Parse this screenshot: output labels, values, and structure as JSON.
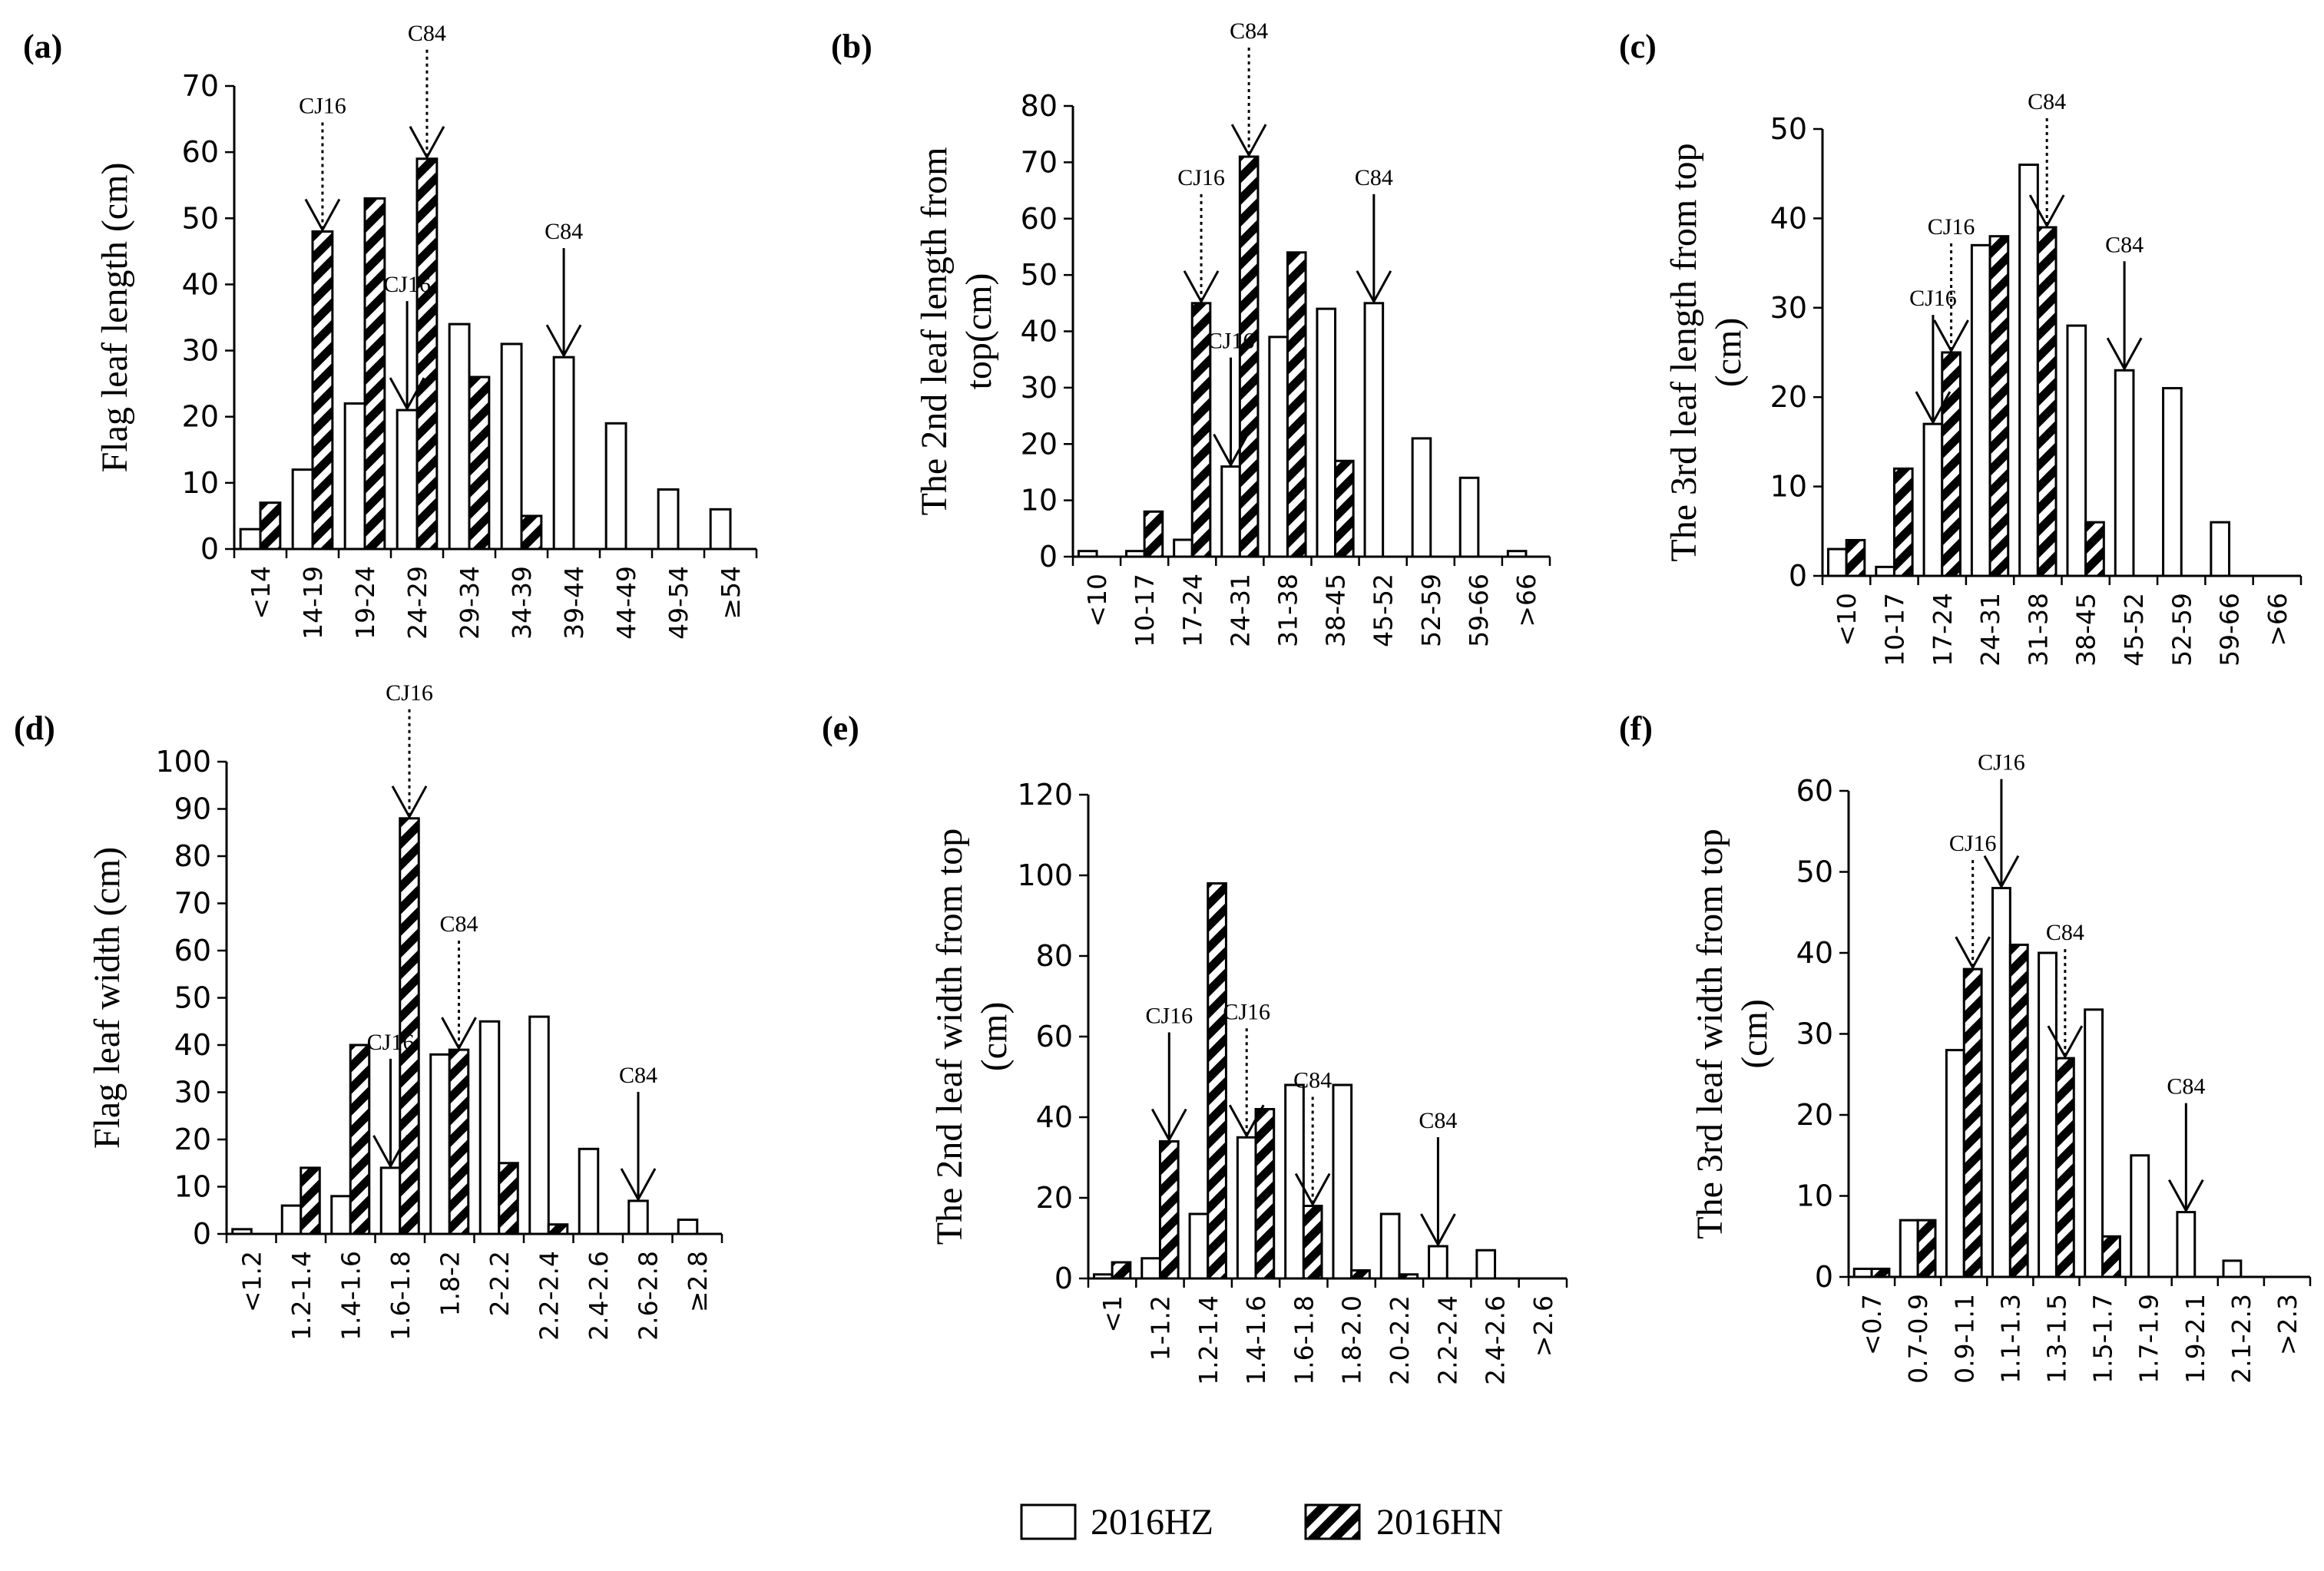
{
  "legend": {
    "hz": "2016HZ",
    "hn": "2016HN",
    "placement": "bottom-center"
  },
  "chart_data": [
    {
      "type": "bar",
      "panel_label": "(a)",
      "ylabel": "Flag leaf length (cm)",
      "categories": [
        "<14",
        "14-19",
        "19-24",
        "24-29",
        "29-34",
        "34-39",
        "39-44",
        "44-49",
        "49-54",
        "≥54"
      ],
      "series": [
        {
          "name": "2016HZ",
          "values": [
            3,
            12,
            22,
            21,
            34,
            31,
            29,
            19,
            9,
            6
          ]
        },
        {
          "name": "2016HN",
          "values": [
            7,
            48,
            53,
            59,
            26,
            5,
            0,
            0,
            0,
            0
          ]
        }
      ],
      "ylim": [
        0,
        70
      ],
      "yticks": [
        0,
        10,
        20,
        30,
        40,
        50,
        60,
        70
      ],
      "annotations": [
        {
          "text": "CJ16",
          "category": 1,
          "series": "2016HN",
          "style": "dotted"
        },
        {
          "text": "CJ16",
          "category": 3,
          "series": "2016HZ",
          "style": "solid"
        },
        {
          "text": "C84",
          "category": 3,
          "series": "2016HN",
          "style": "dotted"
        },
        {
          "text": "C84",
          "category": 6,
          "series": "2016HZ",
          "style": "solid"
        }
      ]
    },
    {
      "type": "bar",
      "panel_label": "(b)",
      "ylabel": "The 2nd leaf length from top(cm)",
      "categories": [
        "<10",
        "10-17",
        "17-24",
        "24-31",
        "31-38",
        "38-45",
        "45-52",
        "52-59",
        "59-66",
        ">66"
      ],
      "series": [
        {
          "name": "2016HZ",
          "values": [
            1,
            1,
            3,
            16,
            39,
            44,
            45,
            21,
            14,
            1
          ]
        },
        {
          "name": "2016HN",
          "values": [
            0,
            8,
            45,
            71,
            54,
            17,
            0,
            0,
            0,
            0
          ]
        }
      ],
      "ylim": [
        0,
        80
      ],
      "yticks": [
        0,
        10,
        20,
        30,
        40,
        50,
        60,
        70,
        80
      ],
      "annotations": [
        {
          "text": "CJ16",
          "category": 2,
          "series": "2016HN",
          "style": "dotted"
        },
        {
          "text": "CJ16",
          "category": 3,
          "series": "2016HZ",
          "style": "solid"
        },
        {
          "text": "C84",
          "category": 3,
          "series": "2016HN",
          "style": "dotted"
        },
        {
          "text": "C84",
          "category": 6,
          "series": "2016HZ",
          "style": "solid"
        }
      ]
    },
    {
      "type": "bar",
      "panel_label": "(c)",
      "ylabel": "The 3rd leaf length from top (cm)",
      "categories": [
        "<10",
        "10-17",
        "17-24",
        "24-31",
        "31-38",
        "38-45",
        "45-52",
        "52-59",
        "59-66",
        ">66"
      ],
      "series": [
        {
          "name": "2016HZ",
          "values": [
            3,
            1,
            17,
            37,
            46,
            28,
            23,
            21,
            6,
            0
          ]
        },
        {
          "name": "2016HN",
          "values": [
            4,
            12,
            25,
            38,
            39,
            6,
            0,
            0,
            0,
            0
          ]
        }
      ],
      "ylim": [
        0,
        50
      ],
      "yticks": [
        0,
        10,
        20,
        30,
        40,
        50
      ],
      "annotations": [
        {
          "text": "CJ16",
          "category": 2,
          "series": "2016HN",
          "style": "dotted"
        },
        {
          "text": "CJ16",
          "category": 2,
          "series": "2016HZ",
          "style": "solid"
        },
        {
          "text": "C84",
          "category": 4,
          "series": "2016HN",
          "style": "dotted"
        },
        {
          "text": "C84",
          "category": 6,
          "series": "2016HZ",
          "style": "solid"
        }
      ]
    },
    {
      "type": "bar",
      "panel_label": "(d)",
      "ylabel": "Flag leaf width (cm)",
      "categories": [
        "<1.2",
        "1.2-1.4",
        "1.4-1.6",
        "1.6-1.8",
        "1.8-2",
        "2-2.2",
        "2.2-2.4",
        "2.4-2.6",
        "2.6-2.8",
        "≥2.8"
      ],
      "series": [
        {
          "name": "2016HZ",
          "values": [
            1,
            6,
            8,
            14,
            38,
            45,
            46,
            18,
            7,
            3
          ]
        },
        {
          "name": "2016HN",
          "values": [
            0,
            14,
            40,
            88,
            39,
            15,
            2,
            0,
            0,
            0
          ]
        }
      ],
      "ylim": [
        0,
        100
      ],
      "yticks": [
        0,
        10,
        20,
        30,
        40,
        50,
        60,
        70,
        80,
        90,
        100
      ],
      "annotations": [
        {
          "text": "CJ16",
          "category": 3,
          "series": "2016HN",
          "style": "dotted"
        },
        {
          "text": "CJ16",
          "category": 3,
          "series": "2016HZ",
          "style": "solid"
        },
        {
          "text": "C84",
          "category": 4,
          "series": "2016HN",
          "style": "dotted"
        },
        {
          "text": "C84",
          "category": 8,
          "series": "2016HZ",
          "style": "solid"
        }
      ]
    },
    {
      "type": "bar",
      "panel_label": "(e)",
      "ylabel": "The 2nd leaf width from top (cm)",
      "categories": [
        "<1",
        "1-1.2",
        "1.2-1.4",
        "1.4-1.6",
        "1.6-1.8",
        "1.8-2.0",
        "2.0-2.2",
        "2.2-2.4",
        "2.4-2.6",
        ">2.6"
      ],
      "series": [
        {
          "name": "2016HZ",
          "values": [
            1,
            5,
            16,
            35,
            48,
            48,
            16,
            8,
            7,
            0
          ]
        },
        {
          "name": "2016HN",
          "values": [
            4,
            34,
            98,
            42,
            18,
            2,
            1,
            0,
            0,
            0
          ]
        }
      ],
      "ylim": [
        0,
        120
      ],
      "yticks": [
        0,
        20,
        40,
        60,
        80,
        100,
        120
      ],
      "annotations": [
        {
          "text": "CJ16",
          "category": 1,
          "series": "2016HN",
          "style": "solid"
        },
        {
          "text": "CJ16",
          "category": 3,
          "series": "2016HZ",
          "style": "dotted"
        },
        {
          "text": "C84",
          "category": 4,
          "series": "2016HN",
          "style": "dotted"
        },
        {
          "text": "C84",
          "category": 7,
          "series": "2016HZ",
          "style": "solid"
        }
      ]
    },
    {
      "type": "bar",
      "panel_label": "(f)",
      "ylabel": "The 3rd leaf width from top (cm)",
      "categories": [
        "<0.7",
        "0.7-0.9",
        "0.9-1.1",
        "1.1-1.3",
        "1.3-1.5",
        "1.5-1.7",
        "1.7-1.9",
        "1.9-2.1",
        "2.1-2.3",
        ">2.3"
      ],
      "series": [
        {
          "name": "2016HZ",
          "values": [
            1,
            7,
            28,
            48,
            40,
            33,
            15,
            8,
            2,
            0
          ]
        },
        {
          "name": "2016HN",
          "values": [
            1,
            7,
            38,
            41,
            27,
            5,
            0,
            0,
            0,
            0
          ]
        }
      ],
      "ylim": [
        0,
        60
      ],
      "yticks": [
        0,
        10,
        20,
        30,
        40,
        50,
        60
      ],
      "annotations": [
        {
          "text": "CJ16",
          "category": 2,
          "series": "2016HN",
          "style": "dotted"
        },
        {
          "text": "CJ16",
          "category": 3,
          "series": "2016HZ",
          "style": "solid"
        },
        {
          "text": "C84",
          "category": 4,
          "series": "2016HN",
          "style": "dotted"
        },
        {
          "text": "C84",
          "category": 7,
          "series": "2016HZ",
          "style": "solid"
        }
      ]
    }
  ]
}
